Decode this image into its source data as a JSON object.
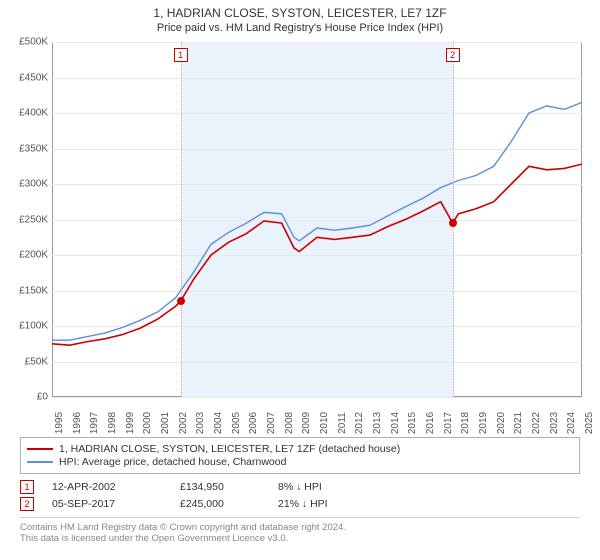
{
  "titles": {
    "line1": "1, HADRIAN CLOSE, SYSTON, LEICESTER, LE7 1ZF",
    "line2": "Price paid vs. HM Land Registry's House Price Index (HPI)"
  },
  "chart": {
    "type": "line",
    "background_color": "#ffffff",
    "grid_color": "#e8e8e8",
    "border_color": "#999999",
    "shade_color": "#eaf2fb",
    "x": {
      "min": 1995,
      "max": 2025,
      "ticks": [
        1995,
        1996,
        1997,
        1998,
        1999,
        2000,
        2001,
        2002,
        2003,
        2004,
        2005,
        2006,
        2007,
        2008,
        2009,
        2010,
        2011,
        2012,
        2013,
        2014,
        2015,
        2016,
        2017,
        2018,
        2019,
        2020,
        2021,
        2022,
        2023,
        2024,
        2025
      ]
    },
    "y": {
      "min": 0,
      "max": 500,
      "step": 50,
      "prefix": "£",
      "suffix": "K",
      "ticks": [
        0,
        50,
        100,
        150,
        200,
        250,
        300,
        350,
        400,
        450,
        500
      ]
    },
    "sales_shade": {
      "from_year": 2002.28,
      "to_year": 2017.68
    },
    "series": [
      {
        "key": "property",
        "label": "1, HADRIAN CLOSE, SYSTON, LEICESTER, LE7 1ZF (detached house)",
        "color": "#cc0000",
        "width": 1.6,
        "points": [
          [
            1995,
            75
          ],
          [
            1996,
            73
          ],
          [
            1997,
            78
          ],
          [
            1998,
            82
          ],
          [
            1999,
            88
          ],
          [
            2000,
            97
          ],
          [
            2001,
            110
          ],
          [
            2002,
            128
          ],
          [
            2002.28,
            135
          ],
          [
            2003,
            165
          ],
          [
            2004,
            200
          ],
          [
            2005,
            218
          ],
          [
            2006,
            230
          ],
          [
            2007,
            248
          ],
          [
            2008,
            245
          ],
          [
            2008.7,
            210
          ],
          [
            2009,
            205
          ],
          [
            2010,
            225
          ],
          [
            2011,
            222
          ],
          [
            2012,
            225
          ],
          [
            2013,
            228
          ],
          [
            2014,
            240
          ],
          [
            2015,
            250
          ],
          [
            2016,
            262
          ],
          [
            2017,
            275
          ],
          [
            2017.68,
            245
          ],
          [
            2018,
            258
          ],
          [
            2019,
            265
          ],
          [
            2020,
            275
          ],
          [
            2021,
            300
          ],
          [
            2022,
            325
          ],
          [
            2023,
            320
          ],
          [
            2024,
            322
          ],
          [
            2025,
            328
          ]
        ]
      },
      {
        "key": "hpi",
        "label": "HPI: Average price, detached house, Charnwood",
        "color": "#5b8fd6",
        "width": 1.4,
        "points": [
          [
            1995,
            80
          ],
          [
            1996,
            80
          ],
          [
            1997,
            85
          ],
          [
            1998,
            90
          ],
          [
            1999,
            98
          ],
          [
            2000,
            108
          ],
          [
            2001,
            120
          ],
          [
            2002,
            140
          ],
          [
            2003,
            175
          ],
          [
            2004,
            215
          ],
          [
            2005,
            232
          ],
          [
            2006,
            245
          ],
          [
            2007,
            260
          ],
          [
            2008,
            258
          ],
          [
            2008.7,
            225
          ],
          [
            2009,
            220
          ],
          [
            2010,
            238
          ],
          [
            2011,
            235
          ],
          [
            2012,
            238
          ],
          [
            2013,
            242
          ],
          [
            2014,
            255
          ],
          [
            2015,
            268
          ],
          [
            2016,
            280
          ],
          [
            2017,
            295
          ],
          [
            2018,
            305
          ],
          [
            2019,
            312
          ],
          [
            2020,
            325
          ],
          [
            2021,
            360
          ],
          [
            2022,
            400
          ],
          [
            2023,
            410
          ],
          [
            2024,
            405
          ],
          [
            2025,
            415
          ]
        ]
      }
    ],
    "sale_markers": [
      {
        "n": "1",
        "year": 2002.28,
        "value": 135
      },
      {
        "n": "2",
        "year": 2017.68,
        "value": 245
      }
    ]
  },
  "legend": {
    "rows": [
      {
        "color": "#cc0000",
        "text": "1, HADRIAN CLOSE, SYSTON, LEICESTER, LE7 1ZF (detached house)"
      },
      {
        "color": "#5b8fd6",
        "text": "HPI: Average price, detached house, Charnwood"
      }
    ]
  },
  "sales": [
    {
      "n": "1",
      "date": "12-APR-2002",
      "price": "£134,950",
      "diff": "8% ↓ HPI"
    },
    {
      "n": "2",
      "date": "05-SEP-2017",
      "price": "£245,000",
      "diff": "21% ↓ HPI"
    }
  ],
  "footer": {
    "line1": "Contains HM Land Registry data © Crown copyright and database right 2024.",
    "line2": "This data is licensed under the Open Government Licence v3.0."
  }
}
